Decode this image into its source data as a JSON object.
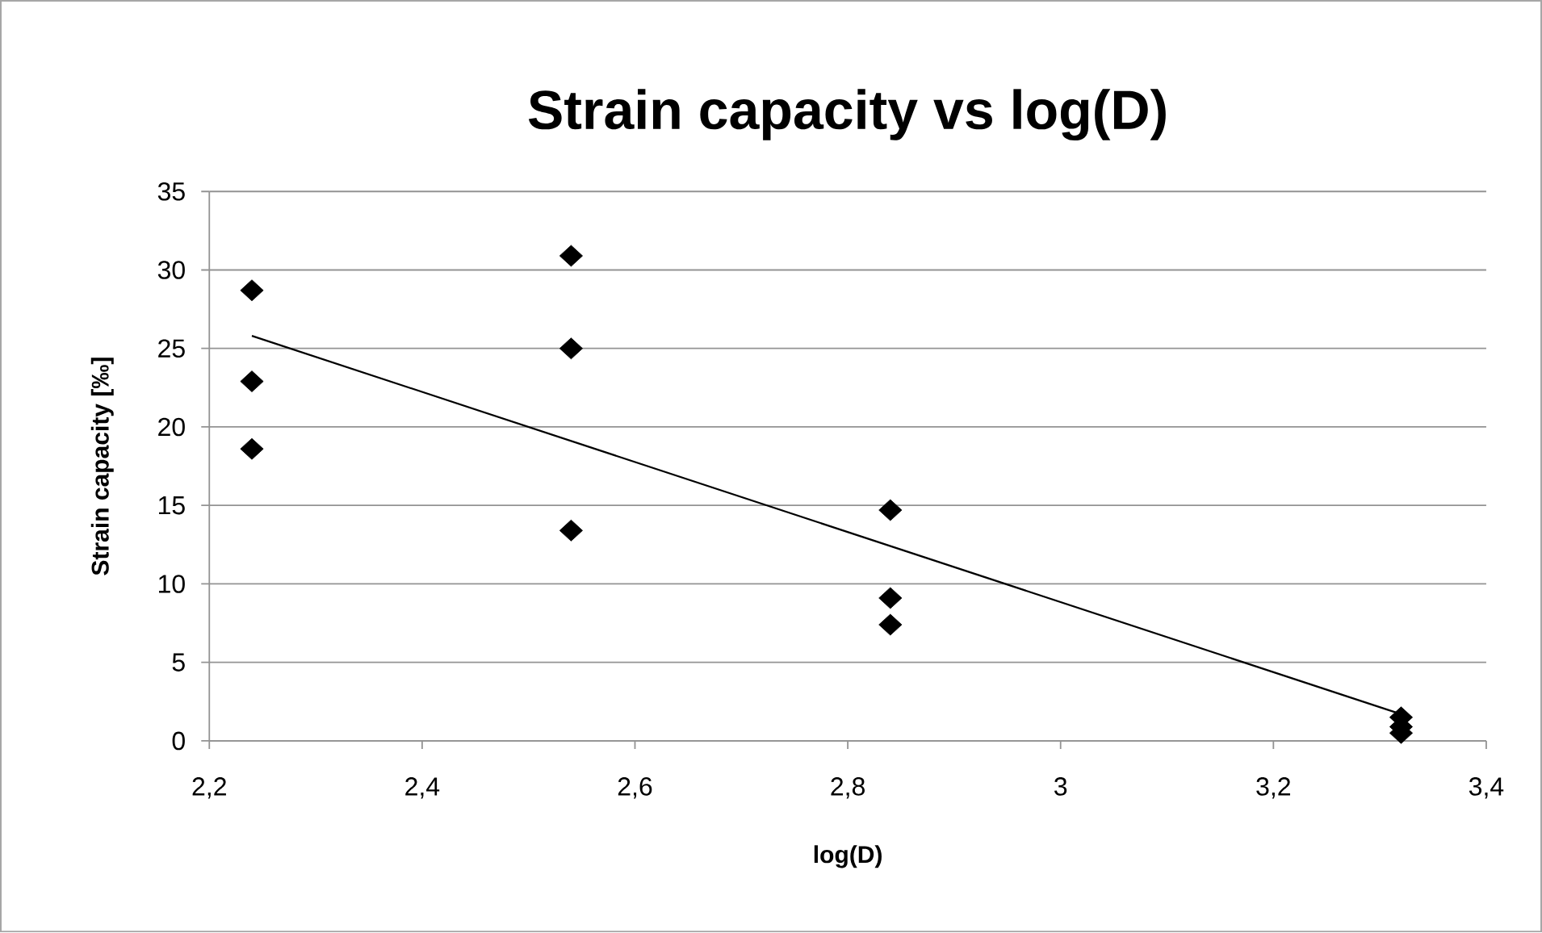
{
  "chart_data": {
    "type": "scatter",
    "title": "Strain capacity vs log(D)",
    "xlabel": "log(D)",
    "ylabel": "Strain capacity  [‰]",
    "series": [
      {
        "color": "#000000",
        "marker": "diamond",
        "x": [
          2.24,
          2.24,
          2.24,
          2.54,
          2.54,
          2.54,
          2.84,
          2.84,
          2.84,
          3.32,
          3.32,
          3.32
        ],
        "values": [
          28.7,
          22.9,
          18.6,
          30.9,
          25.0,
          13.4,
          14.7,
          9.1,
          7.4,
          1.5,
          0.9,
          0.5
        ]
      },
      {
        "type": "line",
        "color": "#000000",
        "x": [
          2.24,
          3.32
        ],
        "values": [
          25.8,
          1.7
        ]
      }
    ],
    "xlim": [
      2.2,
      3.4
    ],
    "xticks": [
      {
        "value": 2.2,
        "label": "2,2"
      },
      {
        "value": 2.4,
        "label": "2,4"
      },
      {
        "value": 2.6,
        "label": "2,6"
      },
      {
        "value": 2.8,
        "label": "2,8"
      },
      3,
      {
        "value": 3.2,
        "label": "3,2"
      },
      {
        "value": 3.4,
        "label": "3,4"
      }
    ],
    "ylim": [
      0,
      35
    ],
    "yticks": [
      0,
      5,
      10,
      15,
      20,
      25,
      30,
      35
    ],
    "grid": "y"
  }
}
